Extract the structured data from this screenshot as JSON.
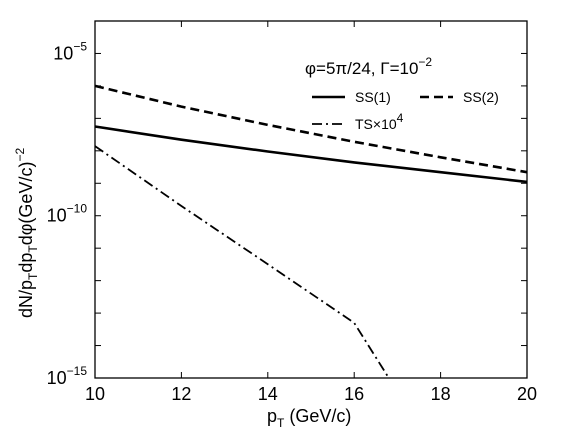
{
  "chart_data": {
    "type": "line",
    "title": "",
    "xlabel": {
      "main": "p",
      "sub": "T",
      "rest": " (GeV/c)"
    },
    "ylabel": "dN/pTdpTdφ(GeV/c)^-2",
    "ylabel_parts": {
      "a": "dN/p",
      "b": "T",
      "c": "dp",
      "d": "T",
      "e": "dφ(GeV/c)",
      "f": "−2"
    },
    "annotation": {
      "a": "φ=5π/24,   Γ=10",
      "b": "−2"
    },
    "x_scale": "linear",
    "y_scale": "log",
    "xlim": [
      10,
      20
    ],
    "ylim": [
      1e-15,
      0.0001
    ],
    "x_ticks": [
      10,
      12,
      14,
      16,
      18,
      20
    ],
    "x_tick_labels": [
      "10",
      "12",
      "14",
      "16",
      "18",
      "20"
    ],
    "y_ticks": [
      1e-15,
      1e-10,
      1e-05
    ],
    "y_tick_labels": [
      {
        "base": "10",
        "exp": "−15"
      },
      {
        "base": "10",
        "exp": "−10"
      },
      {
        "base": "10",
        "exp": "−5"
      }
    ],
    "grid": false,
    "legend_position": "top-right",
    "series": [
      {
        "name": "SS(1)",
        "style": "solid",
        "color": "#000000",
        "x": [
          10,
          12,
          14,
          16,
          18,
          20
        ],
        "y": [
          5.6e-08,
          2.2e-08,
          9.5e-09,
          4.4e-09,
          2.2e-09,
          1.1e-09
        ]
      },
      {
        "name": "SS(2)",
        "style": "dashed",
        "color": "#000000",
        "x": [
          10,
          12,
          14,
          16,
          18,
          20
        ],
        "y": [
          1e-06,
          2.3e-07,
          6.3e-08,
          1.9e-08,
          6.3e-09,
          2.2e-09
        ]
      },
      {
        "name": "TS×10⁴",
        "name_parts": {
          "a": "TS×10",
          "b": "4"
        },
        "style": "dashdot",
        "color": "#000000",
        "x": [
          10,
          12,
          14,
          16,
          16.8
        ],
        "y": [
          1.4e-08,
          2e-10,
          3.2e-12,
          5e-14,
          1e-15
        ]
      }
    ]
  }
}
